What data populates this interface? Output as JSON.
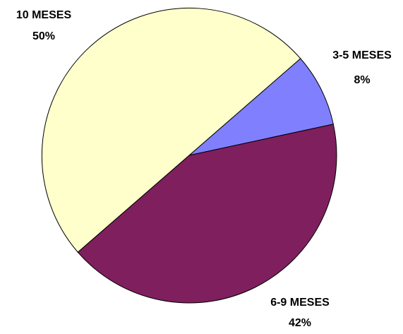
{
  "chart_data": {
    "type": "pie",
    "title": "",
    "slices": [
      {
        "label": "3-5 MESES",
        "value": 8,
        "value_label": "8%",
        "color": "#8080FF"
      },
      {
        "label": "6-9 MESES",
        "value": 42,
        "value_label": "42%",
        "color": "#7F1F5E"
      },
      {
        "label": "10 MESES",
        "value": 50,
        "value_label": "50%",
        "color": "#FFFFCC"
      }
    ],
    "start_angle_deg": -41,
    "direction": "clockwise",
    "slice_border_color": "#000000"
  }
}
